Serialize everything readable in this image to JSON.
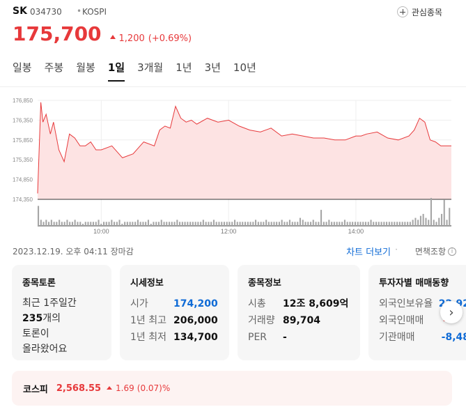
{
  "stock": {
    "name": "SK",
    "code": "034730",
    "separator": "•",
    "market": "KOSPI",
    "price": "175,700",
    "change": "1,200",
    "change_pct": "(+0.69%)",
    "direction": "up",
    "color_up": "#e7393b"
  },
  "watch_button": {
    "label": "관심종목",
    "icon": "plus-circle-icon"
  },
  "tabs": [
    {
      "label": "일봉",
      "active": false
    },
    {
      "label": "주봉",
      "active": false
    },
    {
      "label": "월봉",
      "active": false
    },
    {
      "label": "1일",
      "active": true
    },
    {
      "label": "3개월",
      "active": false
    },
    {
      "label": "1년",
      "active": false
    },
    {
      "label": "3년",
      "active": false
    },
    {
      "label": "10년",
      "active": false
    }
  ],
  "chart_data": {
    "type": "area",
    "y_ticks": [
      "176,850",
      "176,350",
      "175,850",
      "175,350",
      "174,850",
      "174,350"
    ],
    "ylim": [
      174350,
      176850
    ],
    "x_ticks": [
      "10:00",
      "12:00",
      "14:00"
    ],
    "x_range": [
      "09:00",
      "15:30"
    ],
    "series": [
      {
        "x": [
          "09:00",
          "09:03",
          "09:05",
          "09:08",
          "09:12",
          "09:15",
          "09:20",
          "09:25",
          "09:30",
          "09:35",
          "09:40",
          "09:45",
          "09:50",
          "09:55",
          "10:00",
          "10:10",
          "10:20",
          "10:30",
          "10:40",
          "10:50",
          "10:55",
          "11:00",
          "11:05",
          "11:10",
          "11:15",
          "11:20",
          "11:25",
          "11:30",
          "11:40",
          "11:50",
          "12:00",
          "12:10",
          "12:20",
          "12:30",
          "12:40",
          "12:50",
          "13:00",
          "13:10",
          "13:20",
          "13:30",
          "13:40",
          "13:50",
          "14:00",
          "14:05",
          "14:10",
          "14:20",
          "14:30",
          "14:40",
          "14:50",
          "14:55",
          "15:00",
          "15:05",
          "15:10",
          "15:15",
          "15:20",
          "15:30"
        ],
        "y": [
          174500,
          176800,
          176300,
          176500,
          176000,
          176300,
          175600,
          175300,
          176000,
          175900,
          175700,
          175700,
          175800,
          175600,
          175600,
          175700,
          175400,
          175500,
          175800,
          175700,
          176100,
          176200,
          176150,
          176700,
          176400,
          176300,
          176350,
          176250,
          176400,
          176300,
          176350,
          176200,
          176100,
          176050,
          176150,
          175950,
          176000,
          175950,
          175900,
          175900,
          175850,
          175850,
          175950,
          175950,
          176000,
          176050,
          175900,
          175850,
          175950,
          176100,
          176400,
          176300,
          175850,
          175800,
          175700,
          175700
        ]
      }
    ],
    "volume": [
      10,
      3,
      2,
      3,
      2,
      3,
      2,
      2,
      3,
      2,
      2,
      3,
      2,
      2,
      3,
      2,
      2,
      1,
      2,
      2,
      2,
      2,
      2,
      3,
      1,
      2,
      2,
      2,
      3,
      2,
      2,
      3,
      1,
      2,
      2,
      2,
      2,
      2,
      3,
      2,
      2,
      2,
      3,
      1,
      2,
      2,
      2,
      3,
      2,
      2,
      2,
      2,
      2,
      3,
      2,
      2,
      2,
      2,
      2,
      2,
      2,
      2,
      2,
      3,
      2,
      2,
      2,
      3,
      2,
      2,
      2,
      2,
      2,
      2,
      2,
      3,
      2,
      2,
      2,
      2,
      2,
      2,
      2,
      3,
      2,
      2,
      2,
      3,
      2,
      2,
      2,
      2,
      2,
      3,
      2,
      2,
      3,
      2,
      2,
      2,
      4,
      3,
      2,
      2,
      2,
      3,
      2,
      2,
      8,
      2,
      2,
      3,
      2,
      2,
      2,
      2,
      2,
      3,
      2,
      2,
      2,
      2,
      2,
      2,
      2,
      2,
      2,
      3,
      2,
      2,
      2,
      2,
      2,
      2,
      2,
      2,
      2,
      2,
      2,
      2,
      2,
      2,
      2,
      3,
      4,
      3,
      5,
      6,
      4,
      3,
      14,
      3,
      2,
      4,
      6,
      13,
      3,
      9
    ],
    "colors": {
      "line": "#e7393b",
      "fill": "#fde3e3",
      "volume": "#a6a6a6",
      "grid": "#eeeeee"
    }
  },
  "timestamp": "2023.12.19. 오후 04:11 장마감",
  "chart_more_label": "차트 더보기",
  "disclaimer": {
    "label": "면책조항",
    "icon": "info-icon"
  },
  "cards": {
    "discussion": {
      "title": "종목토론",
      "line1": "최근 1주일간",
      "count": "235",
      "count_suffix": "개의",
      "line3": "토론이",
      "line4": "올라왔어요"
    },
    "quote": {
      "title": "시세정보",
      "rows": [
        {
          "label": "시가",
          "value": "174,200"
        },
        {
          "label": "1년 최고",
          "value": "206,000"
        },
        {
          "label": "1년 최저",
          "value": "134,700"
        }
      ]
    },
    "info": {
      "title": "종목정보",
      "rows": [
        {
          "label": "시총",
          "value": "12조 8,609억"
        },
        {
          "label": "거래량",
          "value": "89,704"
        },
        {
          "label": "PER",
          "value": "-"
        }
      ]
    },
    "investor": {
      "title": "투자자별 매매동향",
      "rows": [
        {
          "label": "외국인보유율",
          "value": "22.92"
        },
        {
          "label": "외국인매매",
          "value": "-"
        },
        {
          "label": "기관매매",
          "value": "-8,48"
        }
      ]
    }
  },
  "next_icon": "chevron-right-icon",
  "next_glyph": "›",
  "index": {
    "name": "코스피",
    "value": "2,568.55",
    "change": "1.69",
    "change_pct": "(0.07)%",
    "direction": "up"
  }
}
